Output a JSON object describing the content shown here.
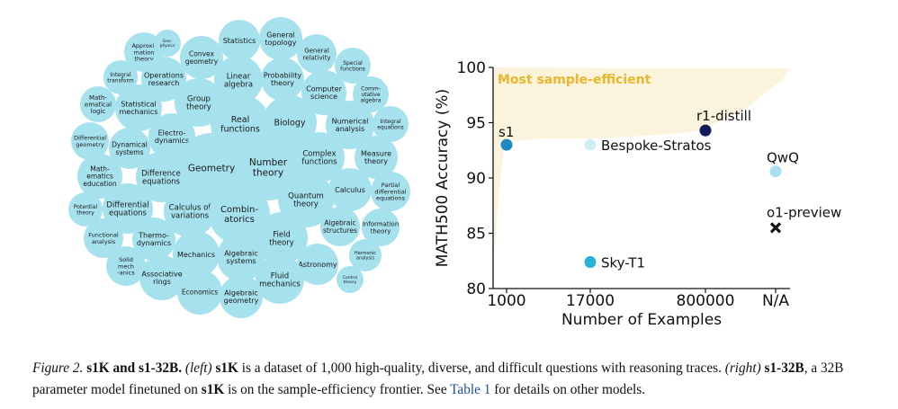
{
  "bubble_topics": [
    "Approxi-\nmation\ntheory",
    "Geo-\nphysics",
    "Convex\ngeometry",
    "Statistics",
    "General\ntopology",
    "General\nrelativity",
    "Special\nfunctions",
    "Integral\ntransform",
    "Operations\nresearch",
    "Linear\nalgebra",
    "Probability\ntheory",
    "Computer\nscience",
    "Comm-\nutative\nalgebra",
    "Math-\nematical\nlogic",
    "Statistical\nmechanics",
    "Group\ntheory",
    "Real\nfunctions",
    "Biology",
    "Numerical\nanalysis",
    "Integral\nequations",
    "Differential\ngeometry",
    "Dynamical\nsystems",
    "Electro-\ndynamics",
    "Geometry",
    "Number\ntheory",
    "Complex\nfunctions",
    "Measure\ntheory",
    "Math-\nematics\neducation",
    "Difference\nequations",
    "Calculus",
    "Partial\ndifferential\nequations",
    "Potential\ntheory",
    "Differential\nequations",
    "Calculus of\nvariations",
    "Combin-\natorics",
    "Quantum\ntheory",
    "Algebraic\nstructures",
    "Information\ntheory",
    "Functional\nanalysis",
    "Thermo-\ndynamics",
    "Field\ntheory",
    "Solid\nmech\n-anics",
    "Mechanics",
    "Algebraic\nsystems",
    "Astronomy",
    "Harmonic\nanalysis",
    "Associative\nrings",
    "Fluid\nmechanics",
    "Control\ntheory",
    "Economics",
    "Algebraic\ngeometry"
  ],
  "chart_data": {
    "type": "scatter",
    "title": "",
    "xlabel": "Number of Examples",
    "ylabel": "MATH500 Accuracy (%)",
    "x_categories": [
      "1000",
      "17000",
      "800000",
      "N/A"
    ],
    "ylim": [
      80,
      100
    ],
    "yticks": [
      80,
      85,
      90,
      95,
      100
    ],
    "region_label": "Most sample-efficient",
    "points": [
      {
        "label": "s1",
        "x": "1000",
        "y": 93.0,
        "color": "#1e88c3",
        "marker": "circle"
      },
      {
        "label": "Bespoke-Stratos",
        "x": "17000",
        "y": 93.0,
        "color": "#cdeef5",
        "marker": "circle"
      },
      {
        "label": "Sky-T1",
        "x": "17000",
        "y": 82.4,
        "color": "#27b1d2",
        "marker": "circle"
      },
      {
        "label": "r1-distill",
        "x": "800000",
        "y": 94.3,
        "color": "#0f1b5c",
        "marker": "circle"
      },
      {
        "label": "QwQ",
        "x": "N/A",
        "y": 90.6,
        "color": "#a8e0ef",
        "marker": "circle"
      },
      {
        "label": "o1-preview",
        "x": "N/A",
        "y": 85.5,
        "color": "#111111",
        "marker": "x"
      }
    ]
  },
  "caption": {
    "figure_label": "Figure 2.",
    "title": "s1K and s1-32B.",
    "left_tag": "(left)",
    "s1k_1": "s1K",
    "text_1": " is a dataset of 1,000 high-quality, diverse, and difficult questions with reasoning traces. ",
    "right_tag": "(right)",
    "s1_32b": "s1-32B",
    "text_2": ", a 32B parameter model finetuned on ",
    "s1k_2": "s1K",
    "text_3": " is on the sample-efficiency frontier. See ",
    "table_link": "Table 1",
    "text_4": " for details on other models."
  }
}
